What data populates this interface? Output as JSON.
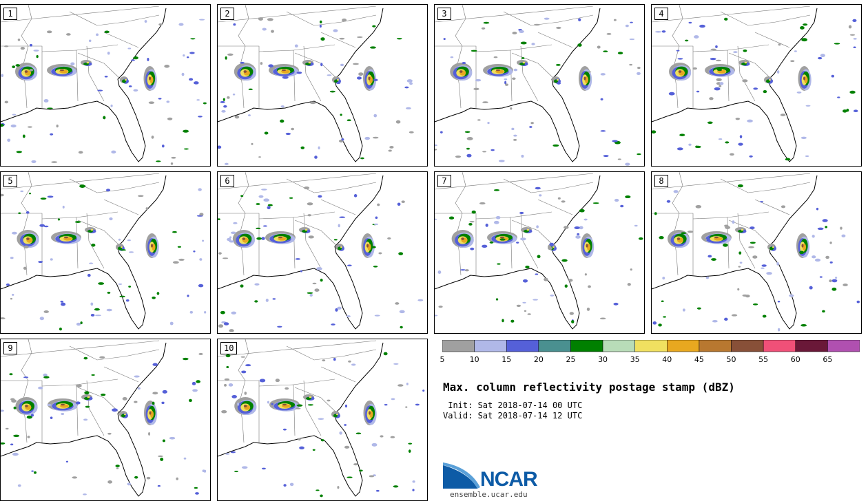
{
  "panels": [
    {
      "label": "1"
    },
    {
      "label": "2"
    },
    {
      "label": "3"
    },
    {
      "label": "4"
    },
    {
      "label": "5"
    },
    {
      "label": "6"
    },
    {
      "label": "7"
    },
    {
      "label": "8"
    },
    {
      "label": "9"
    },
    {
      "label": "10"
    }
  ],
  "colorbar": {
    "ticks": [
      "5",
      "10",
      "15",
      "20",
      "25",
      "30",
      "35",
      "40",
      "45",
      "50",
      "55",
      "60",
      "65"
    ],
    "colors": [
      "#a0a0a0",
      "#b0b8e8",
      "#5560d8",
      "#4a9090",
      "#008000",
      "#b8dcb8",
      "#f0e060",
      "#e8a820",
      "#b87830",
      "#885038",
      "#f05078",
      "#6a1838",
      "#b050b0"
    ]
  },
  "title": "Max. column reflectivity postage stamp (dBZ)",
  "init": " Init: Sat 2018-07-14 00 UTC",
  "valid": "Valid: Sat 2018-07-14 12 UTC",
  "logo": {
    "text": "NCAR",
    "colors": [
      "#0d5ba6",
      "#5aa0d8"
    ]
  },
  "site": "ensemble.ucar.edu"
}
